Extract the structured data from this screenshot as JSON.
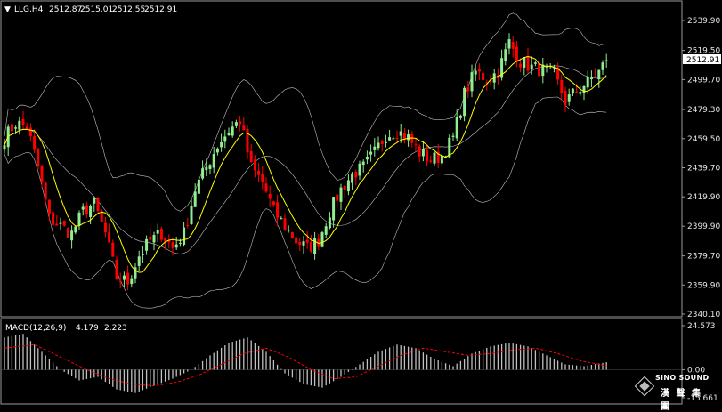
{
  "header": {
    "marker": "▼",
    "symbol": "LLG,H4",
    "open": "2512.87",
    "high": "2515.01",
    "low": "2512.55",
    "close": "2512.91"
  },
  "macd_header": {
    "label": "MACD(12,26,9)",
    "main": "4.179",
    "signal": "2.223"
  },
  "price_axis_labels": [
    "2539.90",
    "2519.50",
    "2499.70",
    "2479.30",
    "2459.50",
    "2439.70",
    "2419.90",
    "2399.90",
    "2379.70",
    "2359.90",
    "2340.10"
  ],
  "current_price_label": "2512.91",
  "macd_axis_labels": [
    "24.573",
    "0.00",
    "-15.661"
  ],
  "logo": {
    "en": "SINO SOUND",
    "cn": "漢 聲 集 團"
  },
  "colors": {
    "background": "#000000",
    "bull_candle": "#90ee90",
    "bear_candle": "#ff0000",
    "ma_line": "#ffff00",
    "bollinger": "#bfbfbf",
    "macd_hist": "#c0c0c0",
    "macd_signal": "#ff0000",
    "axis_text": "#e6e6e6"
  },
  "chart_data": [
    {
      "type": "candlestick",
      "title": "LLG,H4",
      "ylim": [
        2340.1,
        2539.9
      ],
      "close_path": [
        [
          0,
          2460
        ],
        [
          3,
          2470
        ],
        [
          6,
          2468
        ],
        [
          9,
          2440
        ],
        [
          12,
          2405
        ],
        [
          15,
          2400
        ],
        [
          18,
          2395
        ],
        [
          21,
          2410
        ],
        [
          24,
          2415
        ],
        [
          27,
          2395
        ],
        [
          30,
          2365
        ],
        [
          33,
          2362
        ],
        [
          36,
          2380
        ],
        [
          39,
          2390
        ],
        [
          42,
          2395
        ],
        [
          45,
          2385
        ],
        [
          48,
          2395
        ],
        [
          51,
          2425
        ],
        [
          54,
          2440
        ],
        [
          57,
          2455
        ],
        [
          60,
          2465
        ],
        [
          63,
          2472
        ],
        [
          66,
          2440
        ],
        [
          69,
          2430
        ],
        [
          72,
          2410
        ],
        [
          75,
          2400
        ],
        [
          78,
          2390
        ],
        [
          81,
          2385
        ],
        [
          84,
          2390
        ],
        [
          87,
          2410
        ],
        [
          90,
          2425
        ],
        [
          93,
          2435
        ],
        [
          96,
          2440
        ],
        [
          99,
          2450
        ],
        [
          102,
          2462
        ],
        [
          105,
          2465
        ],
        [
          108,
          2460
        ],
        [
          111,
          2450
        ],
        [
          114,
          2445
        ],
        [
          117,
          2448
        ],
        [
          120,
          2460
        ],
        [
          123,
          2490
        ],
        [
          126,
          2505
        ],
        [
          129,
          2500
        ],
        [
          132,
          2505
        ],
        [
          135,
          2525
        ],
        [
          138,
          2512
        ],
        [
          141,
          2508
        ],
        [
          144,
          2506
        ],
        [
          147,
          2503
        ],
        [
          150,
          2485
        ],
        [
          153,
          2492
        ],
        [
          156,
          2498
        ],
        [
          159,
          2505
        ],
        [
          161,
          2512.91
        ]
      ],
      "indicators": [
        "moving average (yellow)",
        "Bollinger bands (grey)"
      ]
    },
    {
      "type": "bar",
      "title": "MACD(12,26,9)",
      "ylim": [
        -15.661,
        24.573
      ],
      "main_path": [
        [
          0,
          18
        ],
        [
          5,
          20
        ],
        [
          10,
          10
        ],
        [
          15,
          0
        ],
        [
          20,
          -6
        ],
        [
          25,
          -4
        ],
        [
          30,
          -11
        ],
        [
          35,
          -13
        ],
        [
          40,
          -9
        ],
        [
          45,
          -5
        ],
        [
          50,
          0
        ],
        [
          55,
          8
        ],
        [
          60,
          15
        ],
        [
          65,
          18
        ],
        [
          70,
          10
        ],
        [
          75,
          -2
        ],
        [
          80,
          -8
        ],
        [
          85,
          -10
        ],
        [
          90,
          -4
        ],
        [
          95,
          3
        ],
        [
          100,
          10
        ],
        [
          105,
          14
        ],
        [
          110,
          12
        ],
        [
          115,
          6
        ],
        [
          120,
          2
        ],
        [
          125,
          9
        ],
        [
          130,
          13
        ],
        [
          135,
          15
        ],
        [
          140,
          13
        ],
        [
          145,
          8
        ],
        [
          150,
          3
        ],
        [
          155,
          2
        ],
        [
          161,
          4.179
        ]
      ],
      "signal_path": [
        [
          0,
          12
        ],
        [
          8,
          14
        ],
        [
          15,
          7
        ],
        [
          22,
          0
        ],
        [
          28,
          -5
        ],
        [
          34,
          -8
        ],
        [
          40,
          -9
        ],
        [
          46,
          -7
        ],
        [
          52,
          -3
        ],
        [
          58,
          3
        ],
        [
          64,
          9
        ],
        [
          70,
          12
        ],
        [
          76,
          7
        ],
        [
          82,
          0
        ],
        [
          88,
          -5
        ],
        [
          94,
          -4
        ],
        [
          100,
          2
        ],
        [
          106,
          8
        ],
        [
          112,
          12
        ],
        [
          118,
          10
        ],
        [
          124,
          8
        ],
        [
          130,
          9
        ],
        [
          136,
          11
        ],
        [
          142,
          12
        ],
        [
          148,
          9
        ],
        [
          154,
          5
        ],
        [
          161,
          2.223
        ]
      ]
    }
  ]
}
